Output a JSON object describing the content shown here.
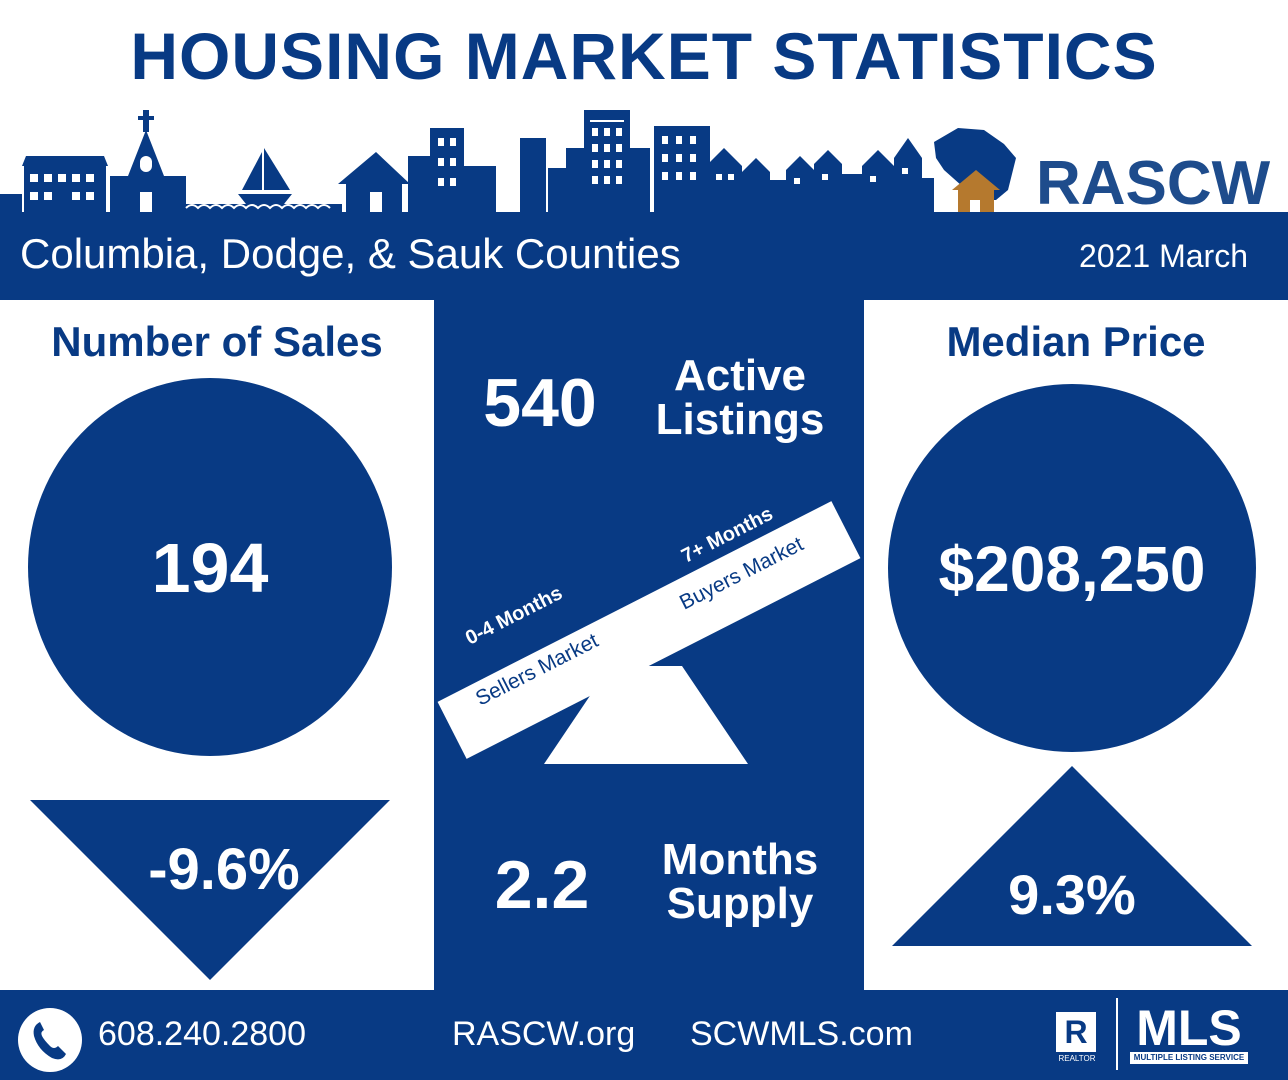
{
  "title": "HOUSING MARKET STATISTICS",
  "brand": "RASCW",
  "region": "Columbia, Dodge, & Sauk Counties",
  "date": "2021 March",
  "sales": {
    "heading": "Number of Sales",
    "value": "194",
    "change": "-9.6%"
  },
  "median": {
    "heading": "Median Price",
    "value": "$208,250",
    "change": "9.3%"
  },
  "listings": {
    "value": "540",
    "label_line1": "Active",
    "label_line2": "Listings"
  },
  "supply": {
    "value": "2.2",
    "label_line1": "Months",
    "label_line2": "Supply"
  },
  "seesaw": {
    "left_bold": "0-4 Months",
    "left_sub": "Sellers Market",
    "right_bold": "7+ Months",
    "right_sub": "Buyers Market"
  },
  "footer": {
    "phone": "608.240.2800",
    "site1": "RASCW.org",
    "site2": "SCWMLS.com",
    "realtor_mark": "R",
    "realtor_text": "REALTOR",
    "mls_logo": "MLS",
    "mls_sub": "MULTIPLE LISTING SERVICE"
  },
  "colors": {
    "navy": "#083a84",
    "orange": "#b5792e",
    "white": "#ffffff"
  },
  "icons": [
    "skyline-illustration",
    "wisconsin-map-icon",
    "house-icon",
    "phone-icon",
    "seesaw-icon"
  ]
}
